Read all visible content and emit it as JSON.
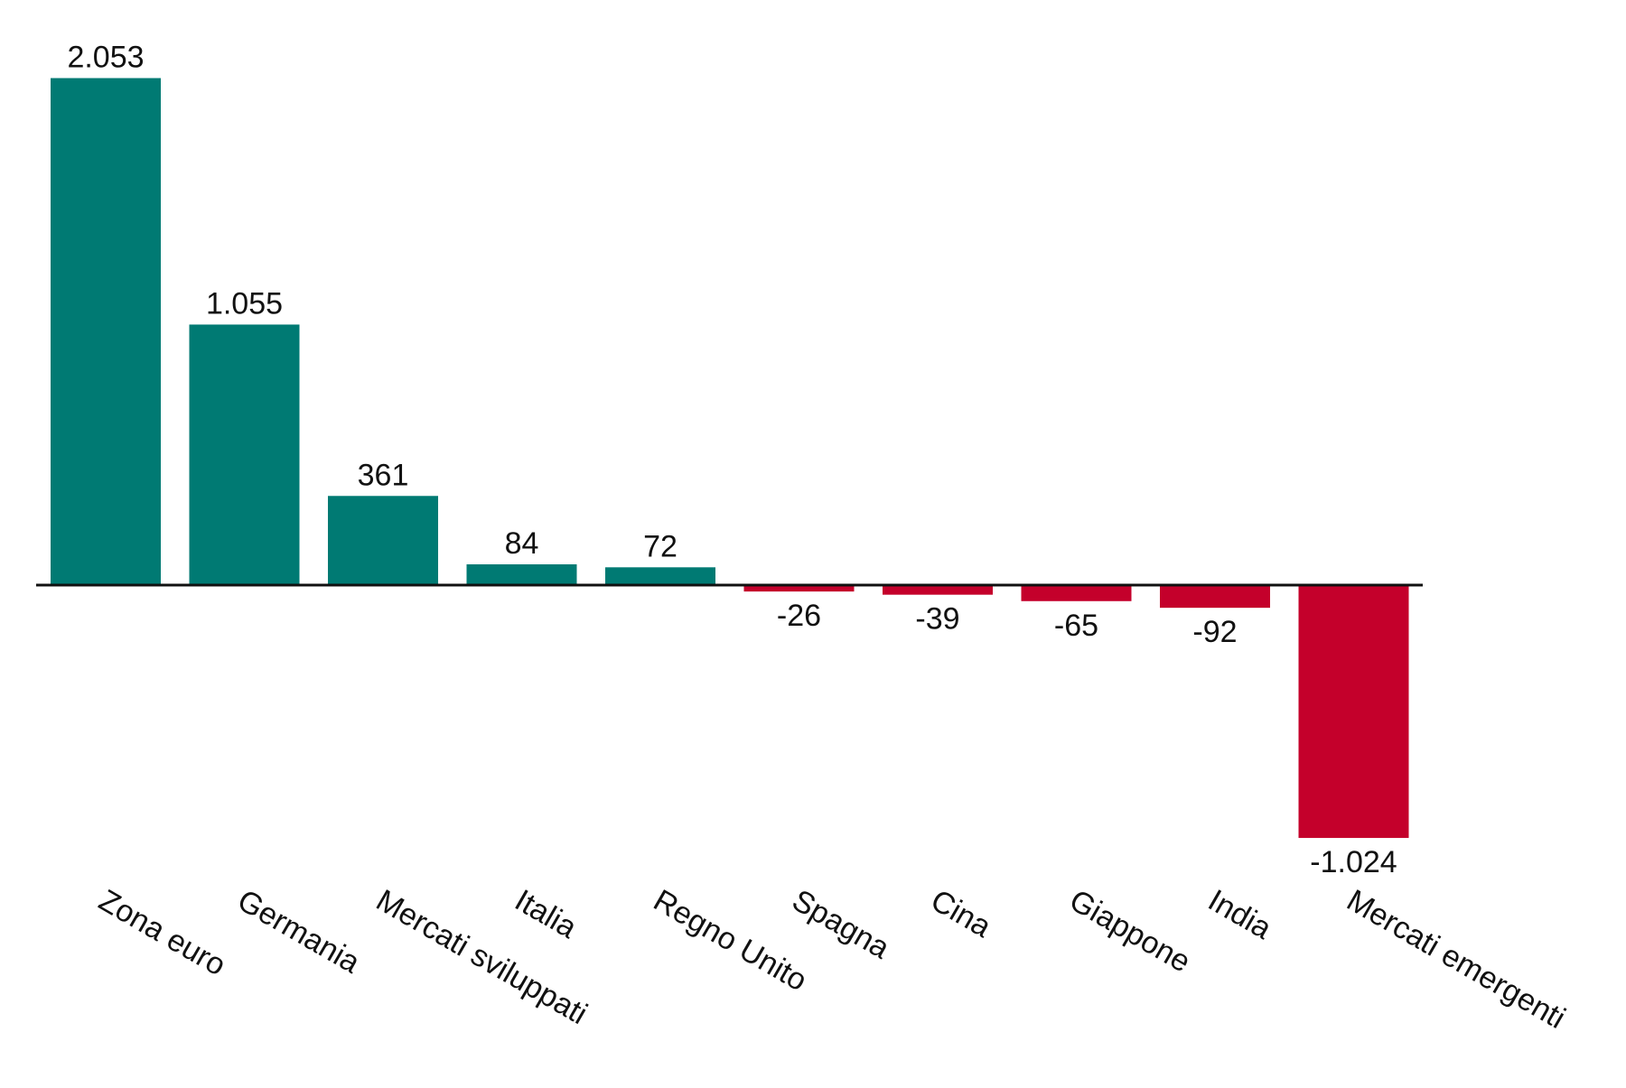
{
  "chart_data": {
    "type": "bar",
    "categories": [
      "Zona euro",
      "Germania",
      "Mercati sviluppati",
      "Italia",
      "Regno Unito",
      "Spagna",
      "Cina",
      "Giappone",
      "India",
      "Mercati emergenti"
    ],
    "values": [
      2053,
      1055,
      361,
      84,
      72,
      -26,
      -39,
      -65,
      -92,
      -1024
    ],
    "value_labels": [
      "2.053",
      "1.055",
      "361",
      "84",
      "72",
      "-26",
      "-39",
      "-65",
      "-92",
      "-1.024"
    ],
    "title": "",
    "xlabel": "",
    "ylabel": "",
    "ylim": [
      -1024,
      2053
    ],
    "grid": false,
    "legend": "none",
    "colors": {
      "positive": "#007a73",
      "negative": "#c4002b",
      "axis": "#111111"
    }
  }
}
